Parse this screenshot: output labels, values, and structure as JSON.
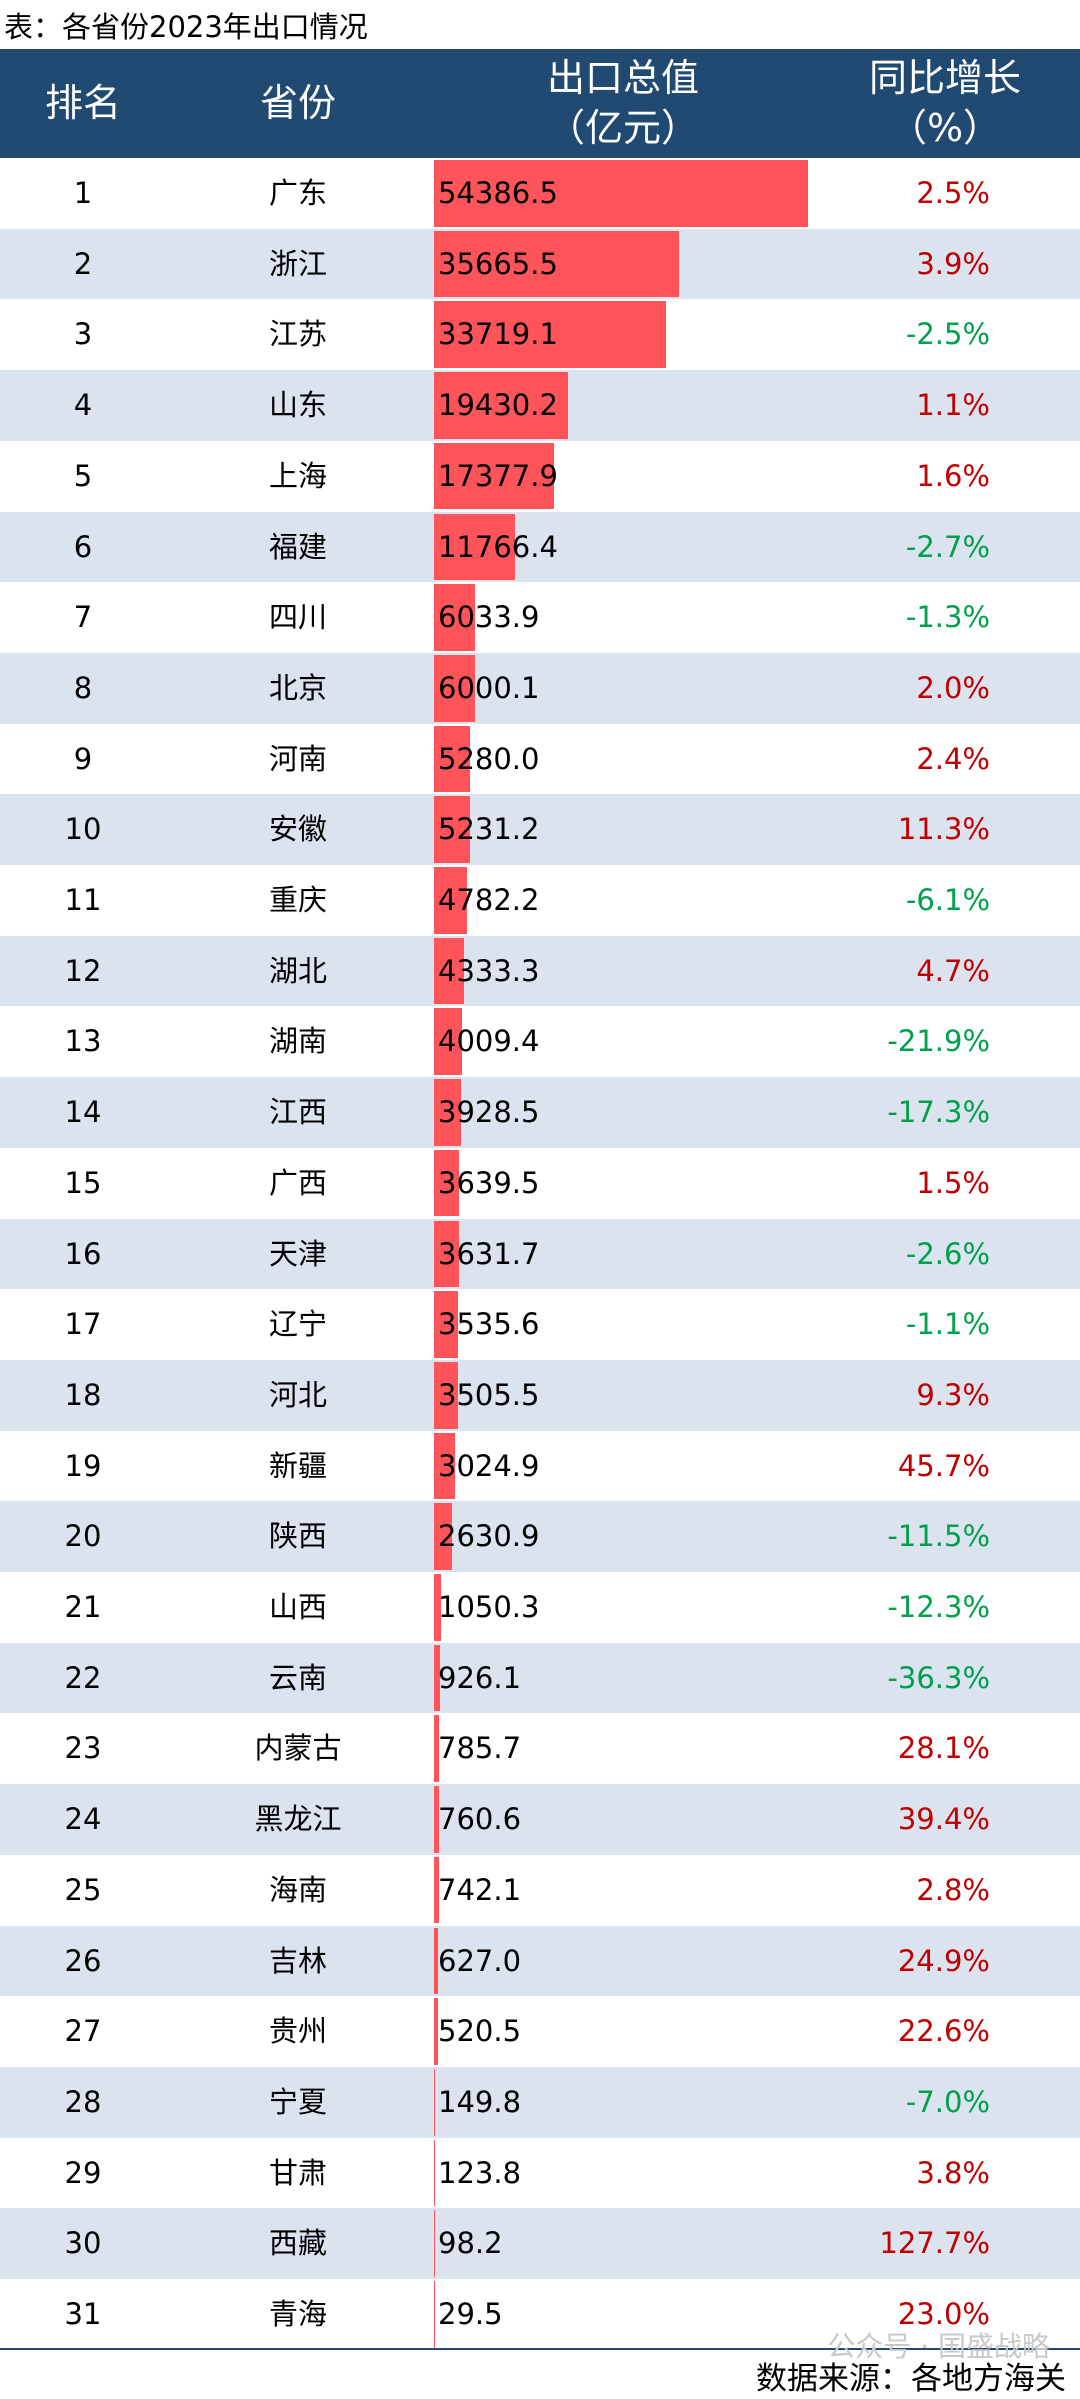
{
  "title": "表：各省份2023年出口情况",
  "table": {
    "header": [
      [
        "排名"
      ],
      [
        "省份"
      ],
      [
        "出口总值",
        "（亿元）"
      ],
      [
        "同比增长",
        "（%）"
      ]
    ],
    "rows": [
      [
        "1",
        "广东",
        "54386.5",
        "2.5%"
      ],
      [
        "2",
        "浙江",
        "35665.5",
        "3.9%"
      ],
      [
        "3",
        "江苏",
        "33719.1",
        "-2.5%"
      ],
      [
        "4",
        "山东",
        "19430.2",
        "1.1%"
      ],
      [
        "5",
        "上海",
        "17377.9",
        "1.6%"
      ],
      [
        "6",
        "福建",
        "11766.4",
        "-2.7%"
      ],
      [
        "7",
        "四川",
        "6033.9",
        "-1.3%"
      ],
      [
        "8",
        "北京",
        "6000.1",
        "2.0%"
      ],
      [
        "9",
        "河南",
        "5280.0",
        "2.4%"
      ],
      [
        "10",
        "安徽",
        "5231.2",
        "11.3%"
      ],
      [
        "11",
        "重庆",
        "4782.2",
        "-6.1%"
      ],
      [
        "12",
        "湖北",
        "4333.3",
        "4.7%"
      ],
      [
        "13",
        "湖南",
        "4009.4",
        "-21.9%"
      ],
      [
        "14",
        "江西",
        "3928.5",
        "-17.3%"
      ],
      [
        "15",
        "广西",
        "3639.5",
        "1.5%"
      ],
      [
        "16",
        "天津",
        "3631.7",
        "-2.6%"
      ],
      [
        "17",
        "辽宁",
        "3535.6",
        "-1.1%"
      ],
      [
        "18",
        "河北",
        "3505.5",
        "9.3%"
      ],
      [
        "19",
        "新疆",
        "3024.9",
        "45.7%"
      ],
      [
        "20",
        "陕西",
        "2630.9",
        "-11.5%"
      ],
      [
        "21",
        "山西",
        "1050.3",
        "-12.3%"
      ],
      [
        "22",
        "云南",
        "926.1",
        "-36.3%"
      ],
      [
        "23",
        "内蒙古",
        "785.7",
        "28.1%"
      ],
      [
        "24",
        "黑龙江",
        "760.6",
        "39.4%"
      ],
      [
        "25",
        "海南",
        "742.1",
        "2.8%"
      ],
      [
        "26",
        "吉林",
        "627.0",
        "24.9%"
      ],
      [
        "27",
        "贵州",
        "520.5",
        "22.6%"
      ],
      [
        "28",
        "宁夏",
        "149.8",
        "-7.0%"
      ],
      [
        "29",
        "甘肃",
        "123.8",
        "3.8%"
      ],
      [
        "30",
        "西藏",
        "98.2",
        "127.7%"
      ],
      [
        "31",
        "青海",
        "29.5",
        "23.0%"
      ]
    ]
  },
  "watermark": "公众号 · 国盛战略",
  "source": "数据来源：各地方海关"
}
